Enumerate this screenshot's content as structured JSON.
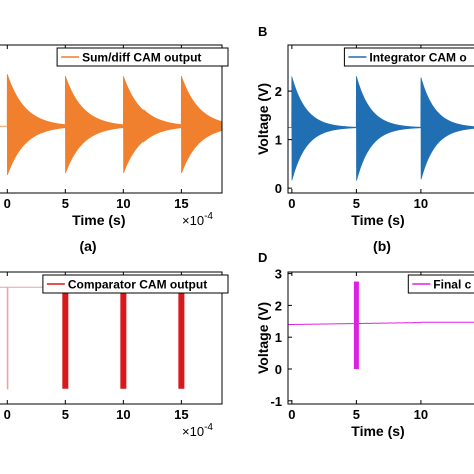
{
  "panel_labels": {
    "B": "B",
    "D": "D"
  },
  "captions": {
    "a": "(a)",
    "b": "(b)"
  },
  "chart_data": [
    {
      "id": "A",
      "type": "line",
      "xlabel": "Time (s)",
      "ylabel": "",
      "x_exponent": "×10",
      "x_exponent_power": "-4",
      "xlim": [
        -0.8,
        18.5
      ],
      "ylim": [
        0.3,
        2.85
      ],
      "xticks": [
        0,
        5,
        10,
        15
      ],
      "xtick_labels": [
        "0",
        "5",
        "10",
        "15"
      ],
      "legend": "Sum/diff CAM output",
      "legend_position": "top-right",
      "color": "#f07f2e",
      "line": {
        "baseline": 1.45,
        "spike_times": [
          0,
          5,
          10,
          15
        ],
        "spike_up": 2.35,
        "spike_down": 0.6,
        "spike_decay": 1.5
      }
    },
    {
      "id": "B",
      "type": "line",
      "xlabel": "Time (s)",
      "ylabel": "Voltage (V)",
      "xlim": [
        -0.3,
        15.2
      ],
      "ylim": [
        -0.1,
        2.95
      ],
      "yticks": [
        0,
        1,
        2
      ],
      "ytick_labels": [
        "0",
        "1",
        "2"
      ],
      "xticks": [
        0,
        5,
        10
      ],
      "xtick_labels": [
        "0",
        "5",
        "10"
      ],
      "legend": "Integrator CAM o",
      "legend_position": "top-right",
      "color": "#1f6fb2",
      "line": {
        "baseline": 1.25,
        "spike_times": [
          0,
          5,
          10
        ],
        "spike_up": 2.3,
        "spike_down": 0.15,
        "spike_decay": 1.1
      }
    },
    {
      "id": "C",
      "type": "line",
      "xlabel": "",
      "ylabel": "",
      "x_exponent": "×10",
      "x_exponent_power": "-4",
      "xlim": [
        -0.8,
        18.5
      ],
      "ylim": [
        -0.15,
        1.15
      ],
      "xticks": [
        0,
        5,
        10,
        15
      ],
      "xtick_labels": [
        "0",
        "5",
        "10",
        "15"
      ],
      "legend": "Comparator CAM output",
      "legend_position": "top-right",
      "color": "#d7191c",
      "line_color": "#f0a0a0",
      "line": {
        "high": 1.0,
        "low": 0.0,
        "high2": 0.97,
        "step_time": 5,
        "pulse_times": [
          5,
          10,
          15
        ],
        "pulse_width": 0.45
      }
    },
    {
      "id": "D",
      "type": "line",
      "xlabel": "Time (s)",
      "ylabel": "Voltage (V)",
      "xlim": [
        -0.3,
        15.2
      ],
      "ylim": [
        -1.1,
        3.05
      ],
      "yticks": [
        -1,
        0,
        1,
        2,
        3
      ],
      "ytick_labels": [
        "-1",
        "0",
        "1",
        "2",
        "3"
      ],
      "xticks": [
        0,
        5,
        10
      ],
      "xtick_labels": [
        "0",
        "5",
        "10"
      ],
      "legend": "Final c",
      "legend_position": "top-right",
      "color": "#e020e0",
      "line": {
        "baseline": 1.4,
        "baseline2": 1.47,
        "step_time": 10,
        "pulse_time": 5,
        "pulse_high": 2.75,
        "pulse_low": 0.0
      }
    }
  ]
}
